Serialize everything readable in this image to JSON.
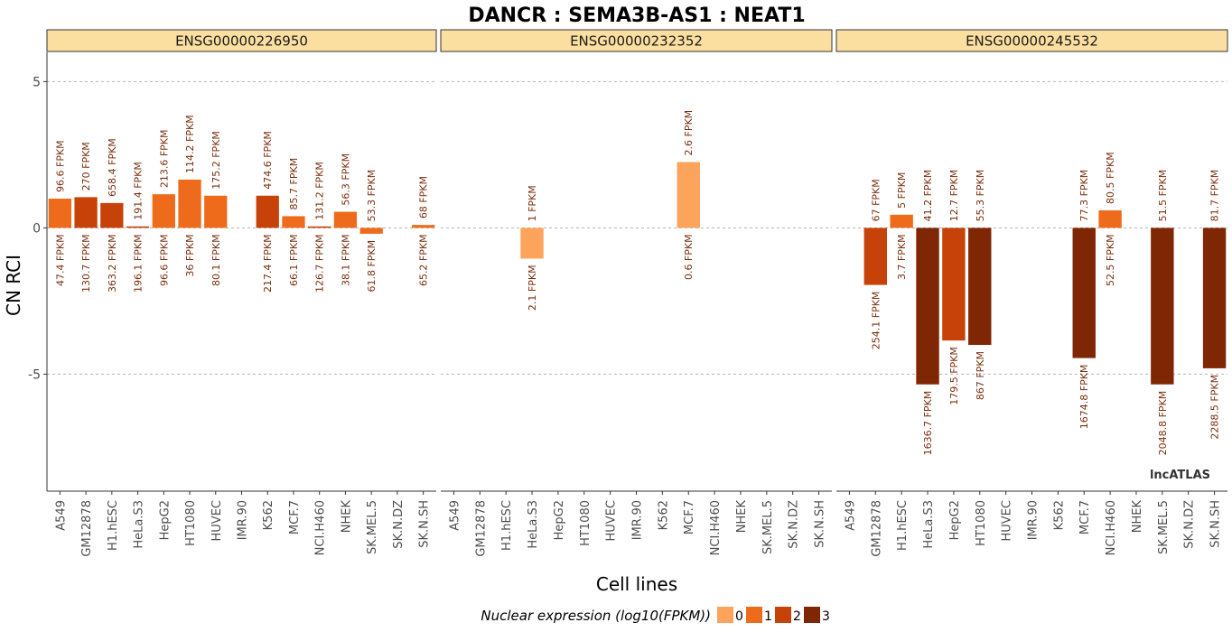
{
  "chart_data": {
    "type": "bar",
    "title": "DANCR : SEMA3B-AS1 : NEAT1",
    "xlabel": "Cell lines",
    "ylabel": "CN RCI",
    "ylim": [
      -9,
      6
    ],
    "yticks": [
      -5,
      0,
      5
    ],
    "grid": true,
    "categories": [
      "A549",
      "GM12878",
      "H1.hESC",
      "HeLa.S3",
      "HepG2",
      "HT1080",
      "HUVEC",
      "IMR.90",
      "K562",
      "MCF.7",
      "NCI.H460",
      "NHEK",
      "SK.MEL.5",
      "SK.N.DZ",
      "SK.N.SH"
    ],
    "facets": [
      {
        "name": "ENSG00000226950",
        "values": [
          1.0,
          1.05,
          0.85,
          0.05,
          1.15,
          1.65,
          1.1,
          null,
          1.1,
          0.4,
          0.05,
          0.55,
          -0.2,
          null,
          0.1
        ],
        "nuclear_fpkm": [
          "47.4 FPKM",
          "130.7 FPKM",
          "363.2 FPKM",
          "196.1 FPKM",
          "96.6 FPKM",
          "36 FPKM",
          "80.1 FPKM",
          "",
          "217.4 FPKM",
          "66.1 FPKM",
          "126.7 FPKM",
          "38.1 FPKM",
          "61.8 FPKM",
          "",
          "65.2 FPKM"
        ],
        "cytoplasmic_fpkm": [
          "96.6 FPKM",
          "270 FPKM",
          "658.4 FPKM",
          "191.4 FPKM",
          "213.6 FPKM",
          "114.2 FPKM",
          "175.2 FPKM",
          "",
          "474.6 FPKM",
          "85.7 FPKM",
          "131.2 FPKM",
          "56.3 FPKM",
          "53.3 FPKM",
          "",
          "68 FPKM"
        ],
        "nuclear_log10": [
          1,
          2,
          2,
          2,
          1,
          1,
          1,
          null,
          2,
          1,
          2,
          1,
          1,
          null,
          1
        ]
      },
      {
        "name": "ENSG00000232352",
        "values": [
          null,
          null,
          null,
          -1.05,
          null,
          null,
          null,
          null,
          null,
          2.25,
          null,
          null,
          null,
          null,
          null
        ],
        "nuclear_fpkm": [
          "",
          "",
          "",
          "2.1 FPKM",
          "",
          "",
          "",
          "",
          "",
          "0.6 FPKM",
          "",
          "",
          "",
          "",
          ""
        ],
        "cytoplasmic_fpkm": [
          "",
          "",
          "",
          "1 FPKM",
          "",
          "",
          "",
          "",
          "",
          "2.6 FPKM",
          "",
          "",
          "",
          "",
          ""
        ],
        "nuclear_log10": [
          null,
          null,
          null,
          0.3,
          null,
          null,
          null,
          null,
          null,
          0,
          null,
          null,
          null,
          null,
          null
        ]
      },
      {
        "name": "ENSG00000245532",
        "values": [
          null,
          -1.95,
          0.45,
          -5.35,
          -3.85,
          -4.0,
          null,
          null,
          null,
          -4.45,
          0.6,
          null,
          -5.35,
          null,
          -4.8
        ],
        "nuclear_fpkm": [
          "",
          "254.1 FPKM",
          "3.7 FPKM",
          "1636.7 FPKM",
          "179.5 FPKM",
          "867 FPKM",
          "",
          "",
          "",
          "1674.8 FPKM",
          "52.5 FPKM",
          "",
          "2048.8 FPKM",
          "",
          "2288.5 FPKM"
        ],
        "cytoplasmic_fpkm": [
          "",
          "67 FPKM",
          "5 FPKM",
          "41.2 FPKM",
          "12.7 FPKM",
          "55.3 FPKM",
          "",
          "",
          "",
          "77.3 FPKM",
          "80.5 FPKM",
          "",
          "51.5 FPKM",
          "",
          "81.7 FPKM"
        ],
        "nuclear_log10": [
          null,
          2,
          1,
          3,
          2,
          3,
          null,
          null,
          null,
          3,
          1,
          null,
          3,
          null,
          3
        ]
      }
    ],
    "legend": {
      "title": "Nuclear expression (log10(FPKM))",
      "placement": "bottom",
      "items": [
        {
          "label": "0",
          "color": "#fca35c"
        },
        {
          "label": "1",
          "color": "#ef6b1c"
        },
        {
          "label": "2",
          "color": "#c64208"
        },
        {
          "label": "3",
          "color": "#7f2704"
        }
      ]
    },
    "watermark": "lncATLAS"
  }
}
